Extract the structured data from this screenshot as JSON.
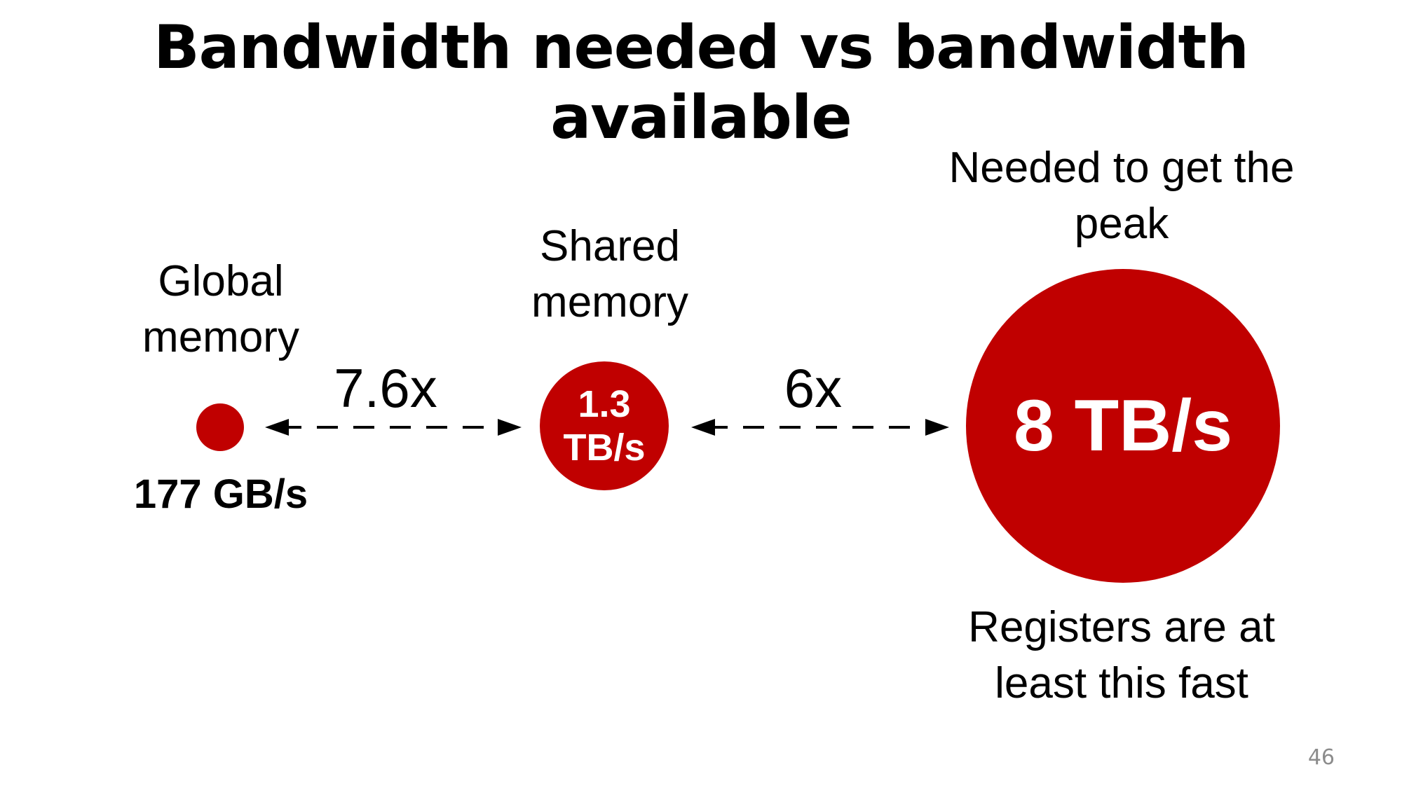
{
  "slide": {
    "title": "Bandwidth needed vs bandwidth available",
    "page_number": "46",
    "accent_color": "#c00000"
  },
  "global": {
    "label_line1": "Global",
    "label_line2": "memory",
    "value": "177 GB/s"
  },
  "shared": {
    "label_line1": "Shared",
    "label_line2": "memory",
    "value_line1": "1.3",
    "value_line2": "TB/s"
  },
  "peak": {
    "label_line1": "Needed to get the",
    "label_line2": "peak",
    "value": "8 TB/s",
    "note_line1": "Registers are at",
    "note_line2": "least this fast"
  },
  "ratios": {
    "global_to_shared": "7.6x",
    "shared_to_peak": "6x"
  }
}
